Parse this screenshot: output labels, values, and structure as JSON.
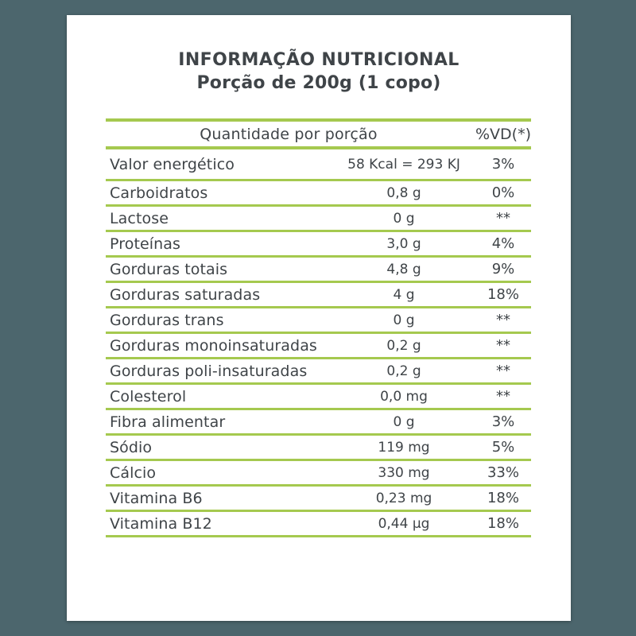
{
  "colors": {
    "background": "#4c666d",
    "accent_green": "#a5c94f",
    "text": "#3f4448",
    "card": "#ffffff"
  },
  "label": {
    "title": "INFORMAÇÃO NUTRICIONAL",
    "serving": "Porção de 200g (1 copo)"
  },
  "table": {
    "header": {
      "amount_label": "Quantidade por porção",
      "dv_label": "%VD(*)"
    },
    "rows": [
      {
        "name": "Valor energético",
        "amount": "58 Kcal = 293 KJ",
        "dv": "3%"
      },
      {
        "name": "Carboidratos",
        "amount": "0,8 g",
        "dv": "0%"
      },
      {
        "name": "Lactose",
        "amount": "0 g",
        "dv": "**"
      },
      {
        "name": "Proteínas",
        "amount": "3,0 g",
        "dv": "4%"
      },
      {
        "name": "Gorduras totais",
        "amount": "4,8 g",
        "dv": "9%"
      },
      {
        "name": "Gorduras saturadas",
        "amount": "4 g",
        "dv": "18%"
      },
      {
        "name": "Gorduras trans",
        "amount": "0 g",
        "dv": "**"
      },
      {
        "name": "Gorduras monoinsaturadas",
        "amount": "0,2 g",
        "dv": "**"
      },
      {
        "name": "Gorduras poli-insaturadas",
        "amount": "0,2 g",
        "dv": "**"
      },
      {
        "name": "Colesterol",
        "amount": "0,0 mg",
        "dv": "**"
      },
      {
        "name": "Fibra alimentar",
        "amount": "0 g",
        "dv": "3%"
      },
      {
        "name": "Sódio",
        "amount": "119 mg",
        "dv": "5%"
      },
      {
        "name": "Cálcio",
        "amount": "330 mg",
        "dv": "33%"
      },
      {
        "name": "Vitamina B6",
        "amount": "0,23 mg",
        "dv": "18%"
      },
      {
        "name": "Vitamina B12",
        "amount": "0,44 µg",
        "dv": "18%"
      }
    ]
  }
}
